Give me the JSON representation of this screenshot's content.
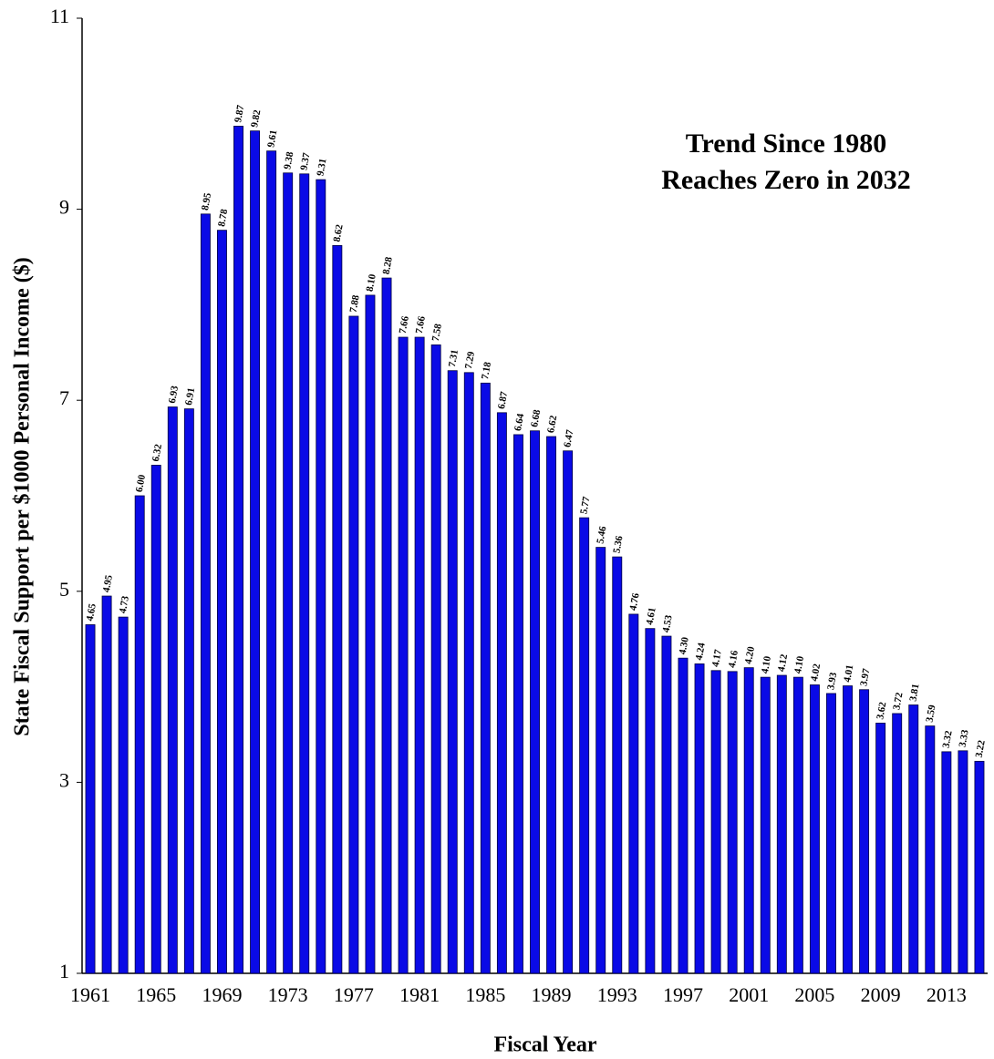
{
  "chart_data": {
    "type": "bar",
    "y_label": "State Fiscal Support per $1000 Personal Income ($)",
    "x_label": "Fiscal Year",
    "annotation": [
      "Trend Since 1980",
      "Reaches Zero in 2032"
    ],
    "categories": [
      "1961",
      null,
      null,
      null,
      "1965",
      null,
      null,
      null,
      "1969",
      null,
      null,
      null,
      "1973",
      null,
      null,
      null,
      "1977",
      null,
      null,
      null,
      "1981",
      null,
      null,
      null,
      "1985",
      null,
      null,
      null,
      "1989",
      null,
      null,
      null,
      "1993",
      null,
      null,
      null,
      "1997",
      null,
      null,
      null,
      "2001",
      null,
      null,
      null,
      "2005",
      null,
      null,
      null,
      "2009",
      null,
      null,
      null,
      "2013",
      null,
      null
    ],
    "values": [
      4.65,
      4.95,
      4.73,
      6.0,
      6.32,
      6.93,
      6.91,
      8.95,
      8.78,
      9.87,
      9.82,
      9.61,
      9.38,
      9.37,
      9.31,
      8.62,
      7.88,
      8.1,
      8.28,
      7.66,
      7.66,
      7.58,
      7.31,
      7.29,
      7.18,
      6.87,
      6.64,
      6.68,
      6.62,
      6.47,
      5.77,
      5.46,
      5.36,
      4.76,
      4.61,
      4.53,
      4.3,
      4.24,
      4.17,
      4.16,
      4.2,
      4.1,
      4.12,
      4.1,
      4.02,
      3.93,
      4.01,
      3.97,
      3.62,
      3.72,
      3.81,
      3.59,
      3.32,
      3.33,
      3.22
    ],
    "value_labels": [
      "4.65",
      "4.95",
      "4.73",
      "6.00",
      "6.32",
      "6.93",
      "6.91",
      "8.95",
      "8.78",
      "9.87",
      "9.82",
      "9.61",
      "9.38",
      "9.37",
      "9.31",
      "8.62",
      "7.88",
      "8.10",
      "8.28",
      "7.66",
      "7.66",
      "7.58",
      "7.31",
      "7.29",
      "7.18",
      "6.87",
      "6.64",
      "6.68",
      "6.62",
      "6.47",
      "5.77",
      "5.46",
      "5.36",
      "4.76",
      "4.61",
      "4.53",
      "4.30",
      "4.24",
      "4.17",
      "4.16",
      "4.20",
      "4.10",
      "4.12",
      "4.10",
      "4.02",
      "3.93",
      "4.01",
      "3.97",
      "3.62",
      "3.72",
      "3.81",
      "3.59",
      "3.32",
      "3.33",
      "3.22"
    ],
    "color": "#0a0ae6",
    "ylim": [
      1,
      11
    ],
    "yticks": [
      1,
      3,
      5,
      7,
      9,
      11
    ],
    "grid": false
  }
}
